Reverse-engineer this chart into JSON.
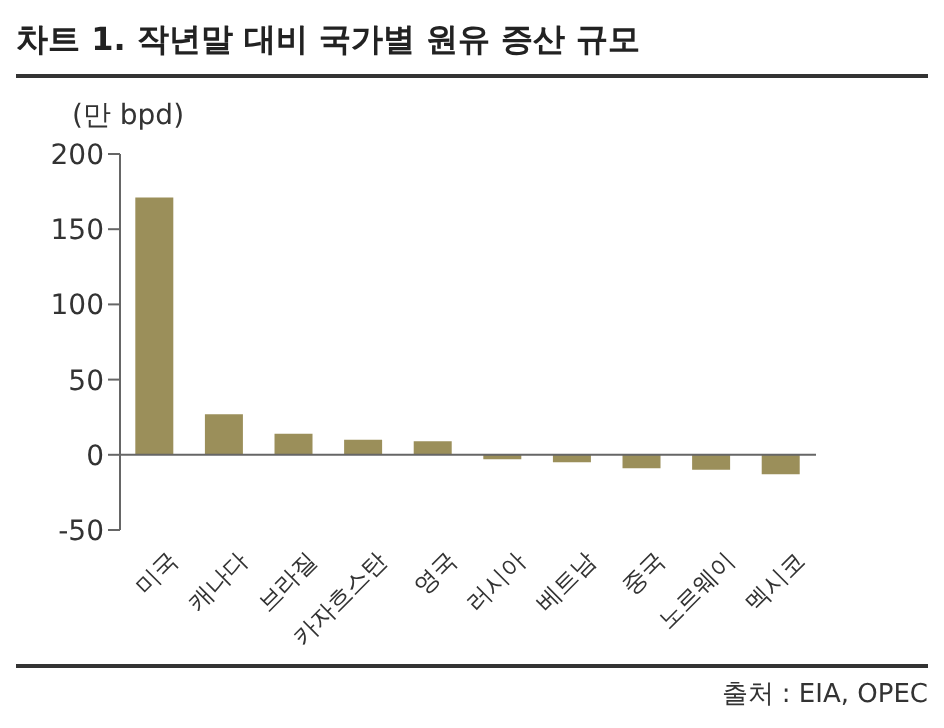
{
  "chart_data": {
    "type": "bar",
    "title": "차트 1. 작년말 대비 국가별 원유 증산 규모",
    "ylabel": "(만 bpd)",
    "categories": [
      "미국",
      "캐나다",
      "브라질",
      "카자흐스탄",
      "영국",
      "러시아",
      "베트남",
      "중국",
      "노르웨이",
      "멕시코"
    ],
    "values": [
      171,
      27,
      14,
      10,
      9,
      -3,
      -5,
      -9,
      -10,
      -13
    ],
    "color": "#9b8f5a",
    "ylim": [
      -50,
      200
    ],
    "yticks": [
      -50,
      0,
      50,
      100,
      150,
      200
    ],
    "annotations": [
      "출처 : EIA, OPEC"
    ]
  }
}
